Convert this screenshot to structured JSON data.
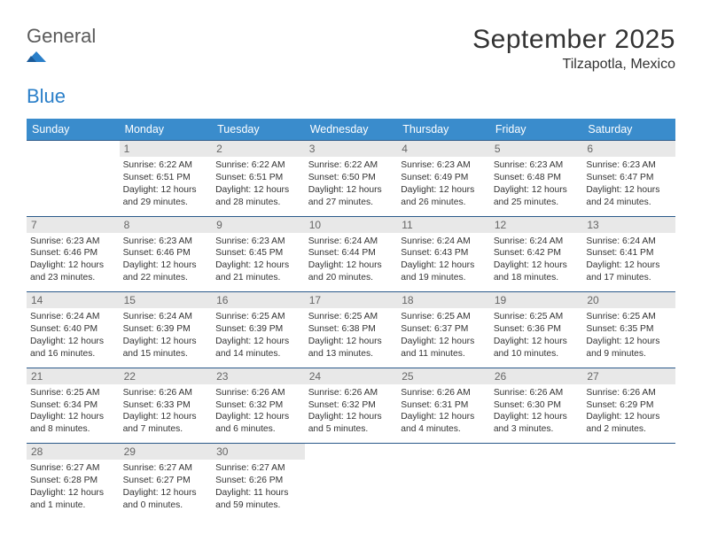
{
  "logo": {
    "general": "General",
    "blue": "Blue"
  },
  "title": "September 2025",
  "location": "Tilzapotla, Mexico",
  "colors": {
    "header_bg": "#3a8ccc",
    "header_text": "#ffffff",
    "daynum_bg": "#e8e8e8",
    "daynum_text": "#666666",
    "border": "#2a5a8a",
    "body_text": "#333333",
    "logo_general": "#5a5a5a",
    "logo_blue": "#2a7fc9"
  },
  "day_names": [
    "Sunday",
    "Monday",
    "Tuesday",
    "Wednesday",
    "Thursday",
    "Friday",
    "Saturday"
  ],
  "weeks": [
    [
      null,
      {
        "n": "1",
        "sr": "Sunrise: 6:22 AM",
        "ss": "Sunset: 6:51 PM",
        "dl": "Daylight: 12 hours and 29 minutes."
      },
      {
        "n": "2",
        "sr": "Sunrise: 6:22 AM",
        "ss": "Sunset: 6:51 PM",
        "dl": "Daylight: 12 hours and 28 minutes."
      },
      {
        "n": "3",
        "sr": "Sunrise: 6:22 AM",
        "ss": "Sunset: 6:50 PM",
        "dl": "Daylight: 12 hours and 27 minutes."
      },
      {
        "n": "4",
        "sr": "Sunrise: 6:23 AM",
        "ss": "Sunset: 6:49 PM",
        "dl": "Daylight: 12 hours and 26 minutes."
      },
      {
        "n": "5",
        "sr": "Sunrise: 6:23 AM",
        "ss": "Sunset: 6:48 PM",
        "dl": "Daylight: 12 hours and 25 minutes."
      },
      {
        "n": "6",
        "sr": "Sunrise: 6:23 AM",
        "ss": "Sunset: 6:47 PM",
        "dl": "Daylight: 12 hours and 24 minutes."
      }
    ],
    [
      {
        "n": "7",
        "sr": "Sunrise: 6:23 AM",
        "ss": "Sunset: 6:46 PM",
        "dl": "Daylight: 12 hours and 23 minutes."
      },
      {
        "n": "8",
        "sr": "Sunrise: 6:23 AM",
        "ss": "Sunset: 6:46 PM",
        "dl": "Daylight: 12 hours and 22 minutes."
      },
      {
        "n": "9",
        "sr": "Sunrise: 6:23 AM",
        "ss": "Sunset: 6:45 PM",
        "dl": "Daylight: 12 hours and 21 minutes."
      },
      {
        "n": "10",
        "sr": "Sunrise: 6:24 AM",
        "ss": "Sunset: 6:44 PM",
        "dl": "Daylight: 12 hours and 20 minutes."
      },
      {
        "n": "11",
        "sr": "Sunrise: 6:24 AM",
        "ss": "Sunset: 6:43 PM",
        "dl": "Daylight: 12 hours and 19 minutes."
      },
      {
        "n": "12",
        "sr": "Sunrise: 6:24 AM",
        "ss": "Sunset: 6:42 PM",
        "dl": "Daylight: 12 hours and 18 minutes."
      },
      {
        "n": "13",
        "sr": "Sunrise: 6:24 AM",
        "ss": "Sunset: 6:41 PM",
        "dl": "Daylight: 12 hours and 17 minutes."
      }
    ],
    [
      {
        "n": "14",
        "sr": "Sunrise: 6:24 AM",
        "ss": "Sunset: 6:40 PM",
        "dl": "Daylight: 12 hours and 16 minutes."
      },
      {
        "n": "15",
        "sr": "Sunrise: 6:24 AM",
        "ss": "Sunset: 6:39 PM",
        "dl": "Daylight: 12 hours and 15 minutes."
      },
      {
        "n": "16",
        "sr": "Sunrise: 6:25 AM",
        "ss": "Sunset: 6:39 PM",
        "dl": "Daylight: 12 hours and 14 minutes."
      },
      {
        "n": "17",
        "sr": "Sunrise: 6:25 AM",
        "ss": "Sunset: 6:38 PM",
        "dl": "Daylight: 12 hours and 13 minutes."
      },
      {
        "n": "18",
        "sr": "Sunrise: 6:25 AM",
        "ss": "Sunset: 6:37 PM",
        "dl": "Daylight: 12 hours and 11 minutes."
      },
      {
        "n": "19",
        "sr": "Sunrise: 6:25 AM",
        "ss": "Sunset: 6:36 PM",
        "dl": "Daylight: 12 hours and 10 minutes."
      },
      {
        "n": "20",
        "sr": "Sunrise: 6:25 AM",
        "ss": "Sunset: 6:35 PM",
        "dl": "Daylight: 12 hours and 9 minutes."
      }
    ],
    [
      {
        "n": "21",
        "sr": "Sunrise: 6:25 AM",
        "ss": "Sunset: 6:34 PM",
        "dl": "Daylight: 12 hours and 8 minutes."
      },
      {
        "n": "22",
        "sr": "Sunrise: 6:26 AM",
        "ss": "Sunset: 6:33 PM",
        "dl": "Daylight: 12 hours and 7 minutes."
      },
      {
        "n": "23",
        "sr": "Sunrise: 6:26 AM",
        "ss": "Sunset: 6:32 PM",
        "dl": "Daylight: 12 hours and 6 minutes."
      },
      {
        "n": "24",
        "sr": "Sunrise: 6:26 AM",
        "ss": "Sunset: 6:32 PM",
        "dl": "Daylight: 12 hours and 5 minutes."
      },
      {
        "n": "25",
        "sr": "Sunrise: 6:26 AM",
        "ss": "Sunset: 6:31 PM",
        "dl": "Daylight: 12 hours and 4 minutes."
      },
      {
        "n": "26",
        "sr": "Sunrise: 6:26 AM",
        "ss": "Sunset: 6:30 PM",
        "dl": "Daylight: 12 hours and 3 minutes."
      },
      {
        "n": "27",
        "sr": "Sunrise: 6:26 AM",
        "ss": "Sunset: 6:29 PM",
        "dl": "Daylight: 12 hours and 2 minutes."
      }
    ],
    [
      {
        "n": "28",
        "sr": "Sunrise: 6:27 AM",
        "ss": "Sunset: 6:28 PM",
        "dl": "Daylight: 12 hours and 1 minute."
      },
      {
        "n": "29",
        "sr": "Sunrise: 6:27 AM",
        "ss": "Sunset: 6:27 PM",
        "dl": "Daylight: 12 hours and 0 minutes."
      },
      {
        "n": "30",
        "sr": "Sunrise: 6:27 AM",
        "ss": "Sunset: 6:26 PM",
        "dl": "Daylight: 11 hours and 59 minutes."
      },
      null,
      null,
      null,
      null
    ]
  ]
}
